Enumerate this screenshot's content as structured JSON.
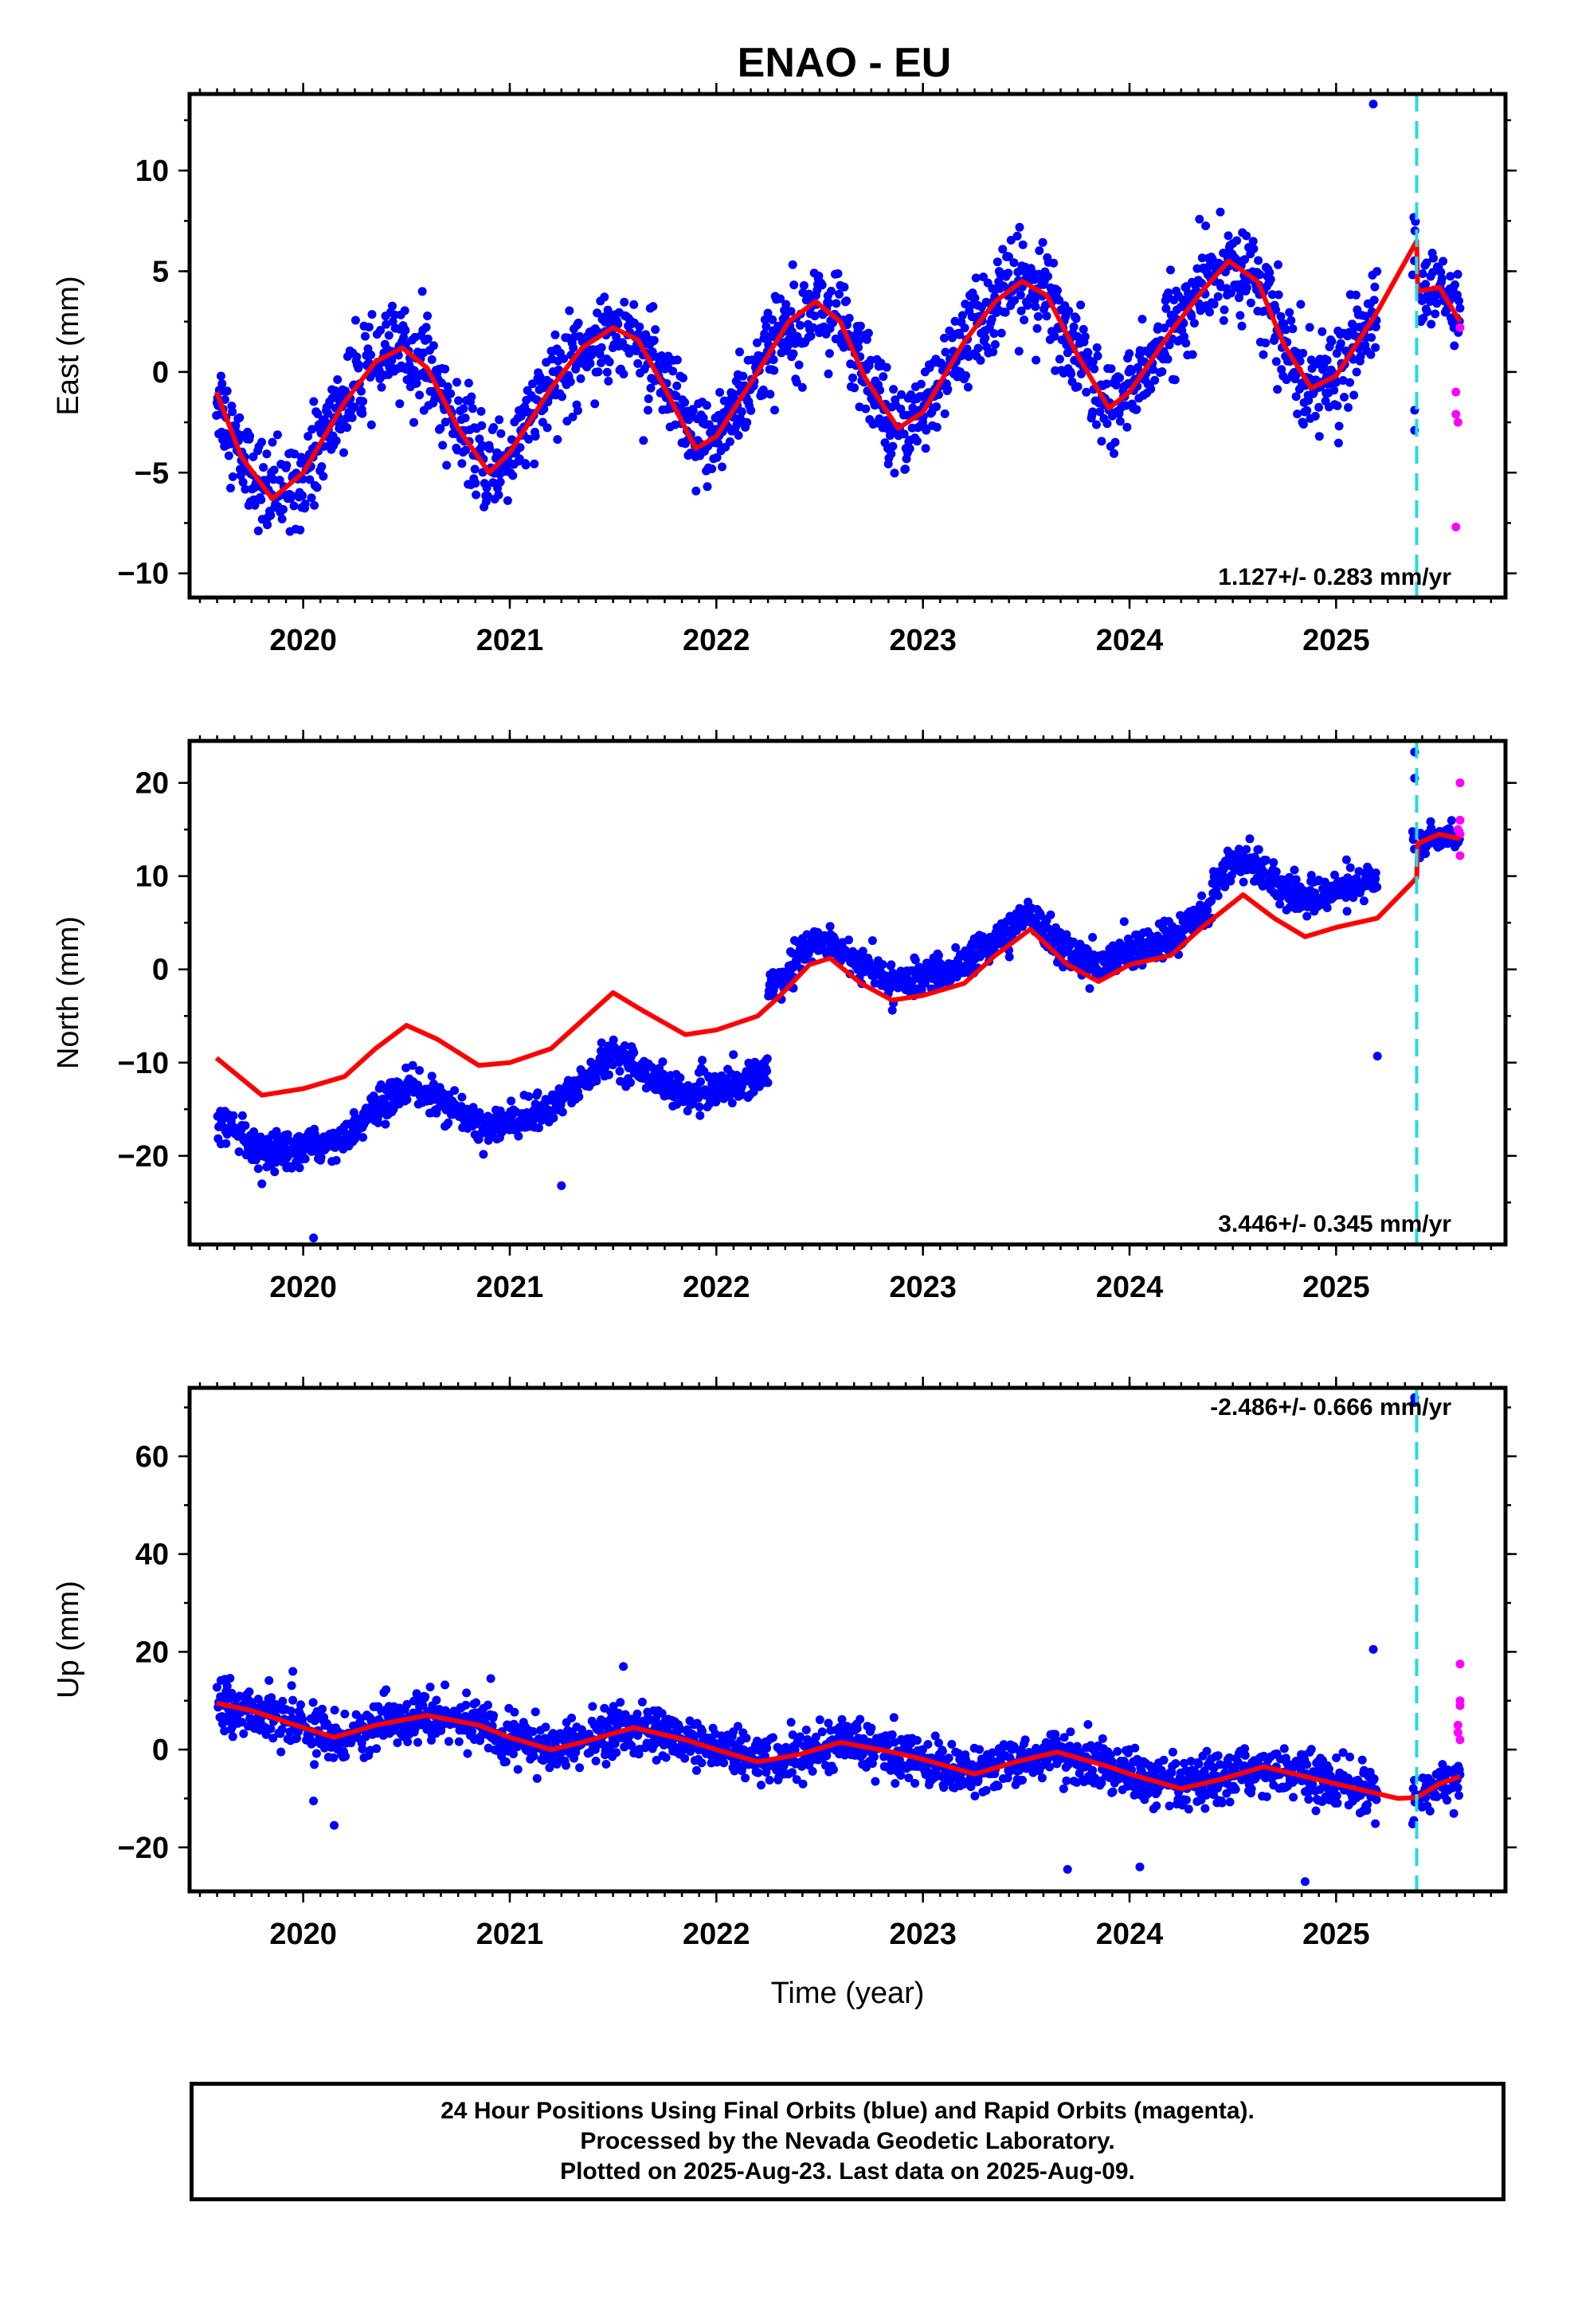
{
  "title": "ENAO - EU",
  "footer": {
    "line1": "24 Hour Positions Using Final Orbits (blue) and Rapid Orbits (magenta).",
    "line2": "Processed by the Nevada Geodetic Laboratory.",
    "line3": "Plotted on 2025-Aug-23. Last data on 2025-Aug-09."
  },
  "colors": {
    "final_orbits": "#0000ff",
    "rapid_orbits": "#ff00ff",
    "model_fit": "#ff0000",
    "equipment_change": "#22dddd"
  },
  "chart_data": [
    {
      "type": "scatter",
      "ylabel": "East (mm)",
      "xlabel": "",
      "rate_text": "1.127+/- 0.283 mm/yr",
      "xlim": [
        2019.45,
        2025.82
      ],
      "ylim": [
        -11.2,
        13.8
      ],
      "yticks": [
        -10,
        -5,
        0,
        5,
        10
      ],
      "xticks": [
        2020,
        2021,
        2022,
        2023,
        2024,
        2025
      ],
      "marker_line_x": 2025.39,
      "model": {
        "name": "East model",
        "x": [
          2019.58,
          2019.7,
          2019.85,
          2020.0,
          2020.2,
          2020.35,
          2020.48,
          2020.6,
          2020.75,
          2020.9,
          2021.0,
          2021.2,
          2021.35,
          2021.5,
          2021.62,
          2021.75,
          2021.9,
          2022.0,
          2022.2,
          2022.35,
          2022.48,
          2022.6,
          2022.72,
          2022.88,
          2023.0,
          2023.2,
          2023.35,
          2023.48,
          2023.6,
          2023.75,
          2023.9,
          2024.0,
          2024.2,
          2024.35,
          2024.48,
          2024.62,
          2024.75,
          2024.88,
          2025.0,
          2025.2,
          2025.39,
          2025.395,
          2025.5,
          2025.6
        ],
        "y": [
          -1.0,
          -4.2,
          -6.3,
          -5.0,
          -1.5,
          0.5,
          1.2,
          0.2,
          -2.8,
          -5.0,
          -4.0,
          -0.8,
          1.2,
          2.2,
          1.6,
          -0.8,
          -3.8,
          -3.2,
          0.0,
          2.5,
          3.5,
          2.5,
          -0.3,
          -2.8,
          -2.0,
          1.5,
          3.5,
          4.5,
          3.8,
          0.8,
          -1.8,
          -1.0,
          2.0,
          4.0,
          5.5,
          4.5,
          1.3,
          -0.8,
          -0.2,
          3.0,
          6.5,
          4.0,
          4.2,
          2.5
        ]
      },
      "final_trend": {
        "slope": 1.127,
        "intercept": -1.5,
        "t0": 2022.5,
        "amplitude": 5.0,
        "phase_peak": 2022.45,
        "noise": 1.6
      },
      "outliers_final": [
        [
          2025.18,
          13.3
        ],
        [
          2025.38,
          -1.9
        ],
        [
          2025.38,
          -2.9
        ]
      ],
      "rapid_points": [
        [
          2025.6,
          2.2
        ],
        [
          2025.58,
          -1.0
        ],
        [
          2025.58,
          -2.1
        ],
        [
          2025.59,
          -2.5
        ],
        [
          2025.58,
          -7.7
        ]
      ]
    },
    {
      "type": "scatter",
      "ylabel": "North (mm)",
      "xlabel": "",
      "rate_text": "3.446+/- 0.345 mm/yr",
      "xlim": [
        2019.45,
        2025.82
      ],
      "ylim": [
        -29.5,
        24.5
      ],
      "yticks": [
        -20,
        -10,
        0,
        10,
        20
      ],
      "xticks": [
        2020,
        2021,
        2022,
        2023,
        2024,
        2025
      ],
      "marker_line_x": 2025.39,
      "model": {
        "name": "North model",
        "x": [
          2019.58,
          2019.8,
          2020.0,
          2020.2,
          2020.35,
          2020.5,
          2020.65,
          2020.85,
          2021.0,
          2021.2,
          2021.35,
          2021.5,
          2021.65,
          2021.85,
          2022.0,
          2022.2,
          2022.3,
          2022.45,
          2022.55,
          2022.7,
          2022.85,
          2023.0,
          2023.2,
          2023.35,
          2023.52,
          2023.7,
          2023.85,
          2024.0,
          2024.2,
          2024.35,
          2024.55,
          2024.7,
          2024.85,
          2025.0,
          2025.2,
          2025.39,
          2025.395,
          2025.5,
          2025.6
        ],
        "y": [
          -9.5,
          -13.5,
          -12.8,
          -11.5,
          -8.5,
          -6.0,
          -7.5,
          -10.3,
          -10.0,
          -8.5,
          -5.5,
          -2.5,
          -4.5,
          -7.0,
          -6.5,
          -5.0,
          -3.0,
          0.5,
          1.2,
          -1.5,
          -3.3,
          -2.8,
          -1.5,
          1.5,
          4.3,
          0.5,
          -1.3,
          0.5,
          1.5,
          4.5,
          8.0,
          5.5,
          3.5,
          4.5,
          5.5,
          9.8,
          13.5,
          14.5,
          14.0
        ]
      },
      "final_trend": {
        "slope": 3.446,
        "intercept": -3.5,
        "t0": 2022.5,
        "amplitude": 1.6,
        "phase_peak": 2022.5,
        "noise": 1.3
      },
      "outliers_final": [
        [
          2019.8,
          -23.0
        ],
        [
          2020.05,
          -28.8
        ],
        [
          2021.25,
          -23.2
        ],
        [
          2025.2,
          -9.3
        ],
        [
          2025.38,
          23.3
        ],
        [
          2025.38,
          20.5
        ]
      ],
      "rapid_points": [
        [
          2025.6,
          20.0
        ],
        [
          2025.6,
          16.0
        ],
        [
          2025.59,
          15.0
        ],
        [
          2025.6,
          14.5
        ],
        [
          2025.6,
          12.2
        ]
      ]
    },
    {
      "type": "scatter",
      "ylabel": "Up (mm)",
      "xlabel": "Time (year)",
      "rate_text": "-2.486+/- 0.666 mm/yr",
      "xlim": [
        2019.45,
        2025.82
      ],
      "ylim": [
        -29.0,
        74.0
      ],
      "yticks": [
        -20,
        0,
        20,
        40,
        60
      ],
      "xticks": [
        2020,
        2021,
        2022,
        2023,
        2024,
        2025
      ],
      "marker_line_x": 2025.39,
      "model": {
        "name": "Up model",
        "x": [
          2019.58,
          2019.75,
          2020.0,
          2020.15,
          2020.35,
          2020.6,
          2020.85,
          2021.0,
          2021.2,
          2021.35,
          2021.6,
          2021.85,
          2022.0,
          2022.2,
          2022.4,
          2022.6,
          2022.85,
          2023.0,
          2023.25,
          2023.45,
          2023.65,
          2023.9,
          2024.0,
          2024.25,
          2024.45,
          2024.65,
          2024.9,
          2025.0,
          2025.2,
          2025.3,
          2025.39,
          2025.5,
          2025.6
        ],
        "y": [
          9.5,
          8.0,
          4.5,
          2.5,
          5.0,
          7.0,
          5.0,
          2.5,
          0.0,
          1.5,
          4.5,
          2.0,
          0.0,
          -2.5,
          -1.0,
          1.5,
          -0.5,
          -2.0,
          -5.0,
          -2.5,
          -0.5,
          -3.5,
          -5.0,
          -8.0,
          -6.0,
          -3.5,
          -6.0,
          -7.0,
          -9.0,
          -10.0,
          -9.8,
          -7.0,
          -5.5
        ]
      },
      "final_trend": {
        "slope": -2.486,
        "intercept": -1.5,
        "t0": 2022.5,
        "amplitude": 2.5,
        "phase_peak": 2022.6,
        "noise": 3.5
      },
      "outliers_final": [
        [
          2020.15,
          -15.5
        ],
        [
          2020.05,
          -10.5
        ],
        [
          2023.7,
          -24.5
        ],
        [
          2024.05,
          -24.0
        ],
        [
          2024.85,
          -27.0
        ],
        [
          2025.18,
          20.5
        ],
        [
          2025.38,
          72.0
        ],
        [
          2025.38,
          71.0
        ],
        [
          2021.55,
          17.0
        ],
        [
          2019.95,
          16.0
        ]
      ],
      "rapid_points": [
        [
          2025.6,
          17.5
        ],
        [
          2025.6,
          10.0
        ],
        [
          2025.6,
          9.0
        ],
        [
          2025.59,
          5.0
        ],
        [
          2025.59,
          3.5
        ],
        [
          2025.6,
          2.0
        ]
      ]
    }
  ]
}
